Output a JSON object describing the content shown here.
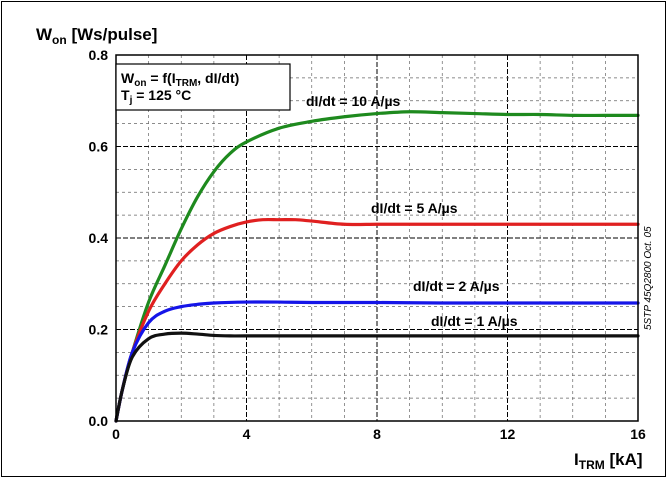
{
  "chart_data": {
    "type": "line",
    "ylabel_main": "W",
    "ylabel_sub": "on",
    "ylabel_unit": " [Ws/pulse]",
    "xlabel_main": "I",
    "xlabel_sub": "TRM",
    "xlabel_unit": " [kA]",
    "xlim": [
      0,
      16
    ],
    "ylim": [
      0,
      0.8
    ],
    "x_ticks": [
      "0",
      "4",
      "8",
      "12",
      "16"
    ],
    "y_ticks": [
      "0.0",
      "0.2",
      "0.4",
      "0.6",
      "0.8"
    ],
    "grid": true,
    "legend_box": {
      "line1_main": "W",
      "line1_sub": "on",
      "line1_mid": " = f(I",
      "line1_sub2": "TRM",
      "line1_end": ", dI/dt)",
      "line2_main": "T",
      "line2_sub": "j",
      "line2_end": " = 125 °C"
    },
    "side_note": "5STP 45Q2800 Oct. 05",
    "series": [
      {
        "name": "dI/dt = 10 A/µs",
        "color": "#1e8a1e",
        "x": [
          0,
          0.2,
          0.5,
          1,
          1.5,
          2,
          2.5,
          3,
          3.5,
          4,
          5,
          6,
          7,
          8,
          9,
          10,
          11,
          12,
          13,
          14,
          15,
          16
        ],
        "y": [
          0,
          0.07,
          0.15,
          0.26,
          0.34,
          0.42,
          0.49,
          0.545,
          0.585,
          0.61,
          0.64,
          0.655,
          0.665,
          0.672,
          0.676,
          0.674,
          0.672,
          0.67,
          0.67,
          0.668,
          0.668,
          0.668
        ]
      },
      {
        "name": "dI/dt = 5 A/µs",
        "color": "#e02020",
        "x": [
          0,
          0.2,
          0.5,
          1,
          1.5,
          2,
          2.5,
          3,
          3.5,
          4,
          4.5,
          5,
          5.5,
          6,
          7,
          8,
          9,
          10,
          12,
          14,
          16
        ],
        "y": [
          0,
          0.07,
          0.15,
          0.24,
          0.3,
          0.35,
          0.385,
          0.41,
          0.425,
          0.435,
          0.44,
          0.44,
          0.44,
          0.437,
          0.43,
          0.43,
          0.43,
          0.43,
          0.43,
          0.43,
          0.43
        ]
      },
      {
        "name": "dI/dt = 2 A/µs",
        "color": "#1515e8",
        "x": [
          0,
          0.2,
          0.5,
          1,
          1.5,
          2,
          2.5,
          3,
          4,
          5,
          6,
          8,
          10,
          12,
          14,
          16
        ],
        "y": [
          0,
          0.07,
          0.15,
          0.215,
          0.24,
          0.25,
          0.255,
          0.258,
          0.26,
          0.26,
          0.259,
          0.259,
          0.258,
          0.258,
          0.258,
          0.258
        ]
      },
      {
        "name": "dI/dt = 1 A/µs",
        "color": "#111111",
        "x": [
          0,
          0.2,
          0.5,
          1,
          1.5,
          2,
          2.5,
          3,
          3.5,
          4,
          6,
          8,
          10,
          12,
          14,
          16
        ],
        "y": [
          0,
          0.07,
          0.14,
          0.18,
          0.19,
          0.192,
          0.19,
          0.187,
          0.186,
          0.186,
          0.186,
          0.186,
          0.186,
          0.186,
          0.186,
          0.186
        ]
      }
    ]
  }
}
